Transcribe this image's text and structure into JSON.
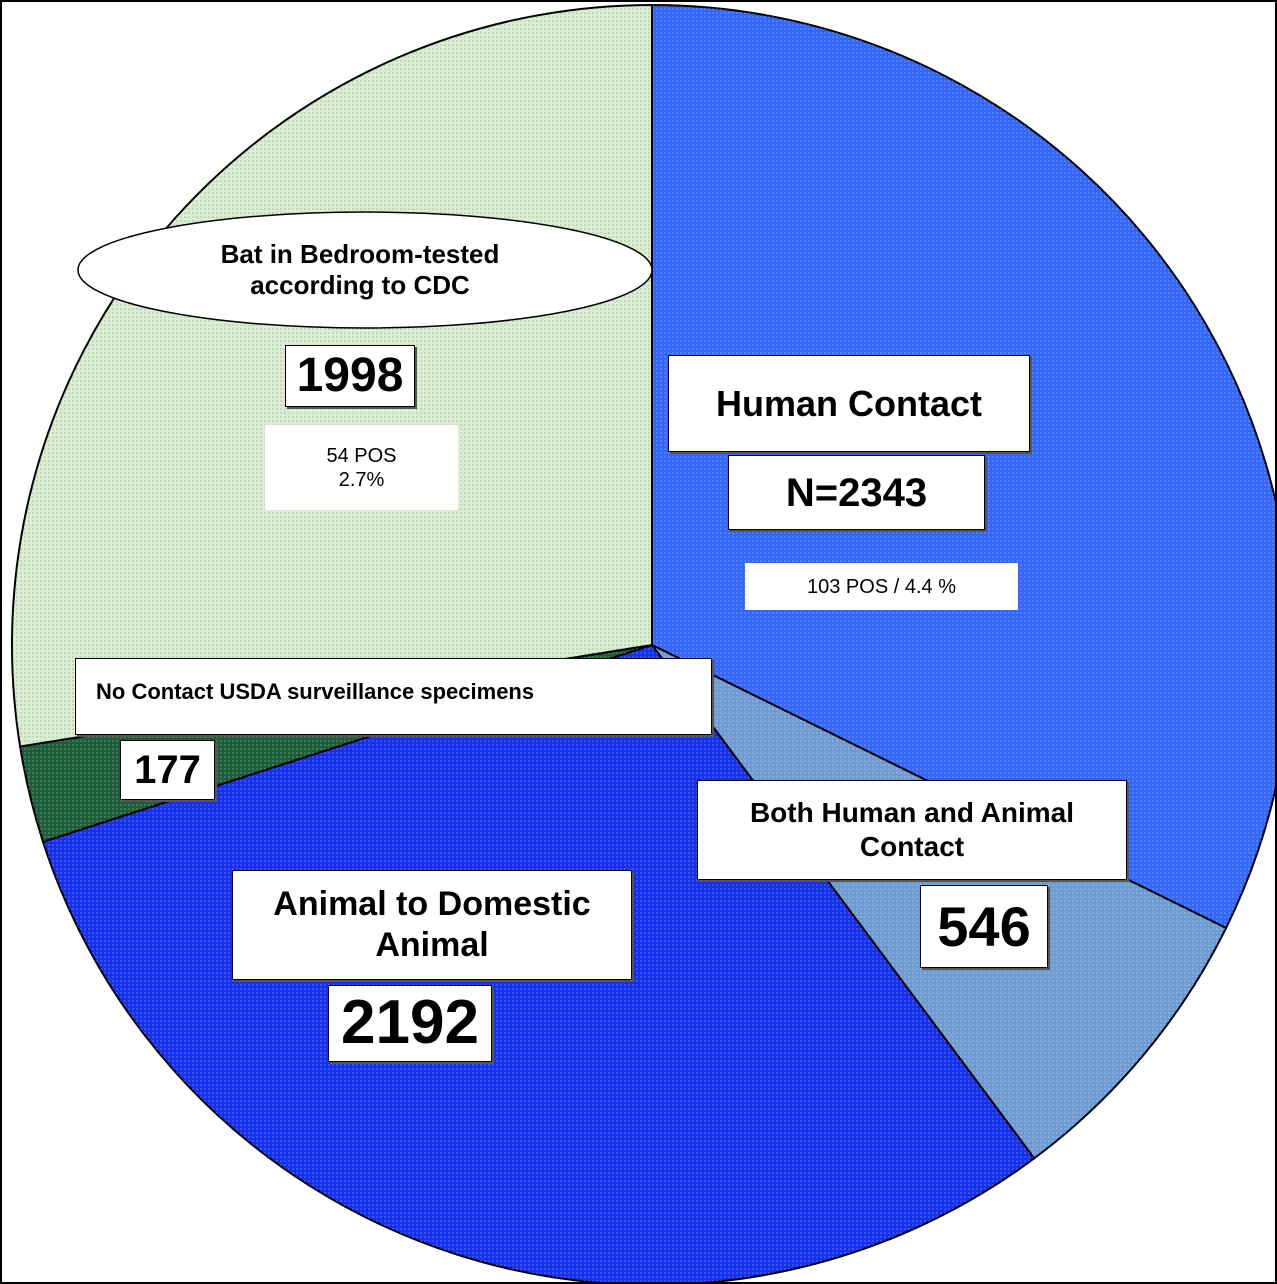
{
  "chart_data": {
    "type": "pie",
    "categories": [
      "Human Contact",
      "Both Human and Animal Contact",
      "Animal to Domestic Animal",
      "No Contact USDA surveillance specimens",
      "Bat in Bedroom-tested according to CDC"
    ],
    "values": [
      2343,
      546,
      2192,
      177,
      1998
    ],
    "value_labels": [
      "N=2343",
      "546",
      "2192",
      "177",
      "1998"
    ],
    "colors": [
      "#3366ff",
      "#6f9bd3",
      "#1530ee",
      "#1d5e3a",
      "#dbeed3"
    ],
    "annotations": [
      "103 POS / 4.4 %",
      "54 POS 2.7%"
    ]
  }
}
